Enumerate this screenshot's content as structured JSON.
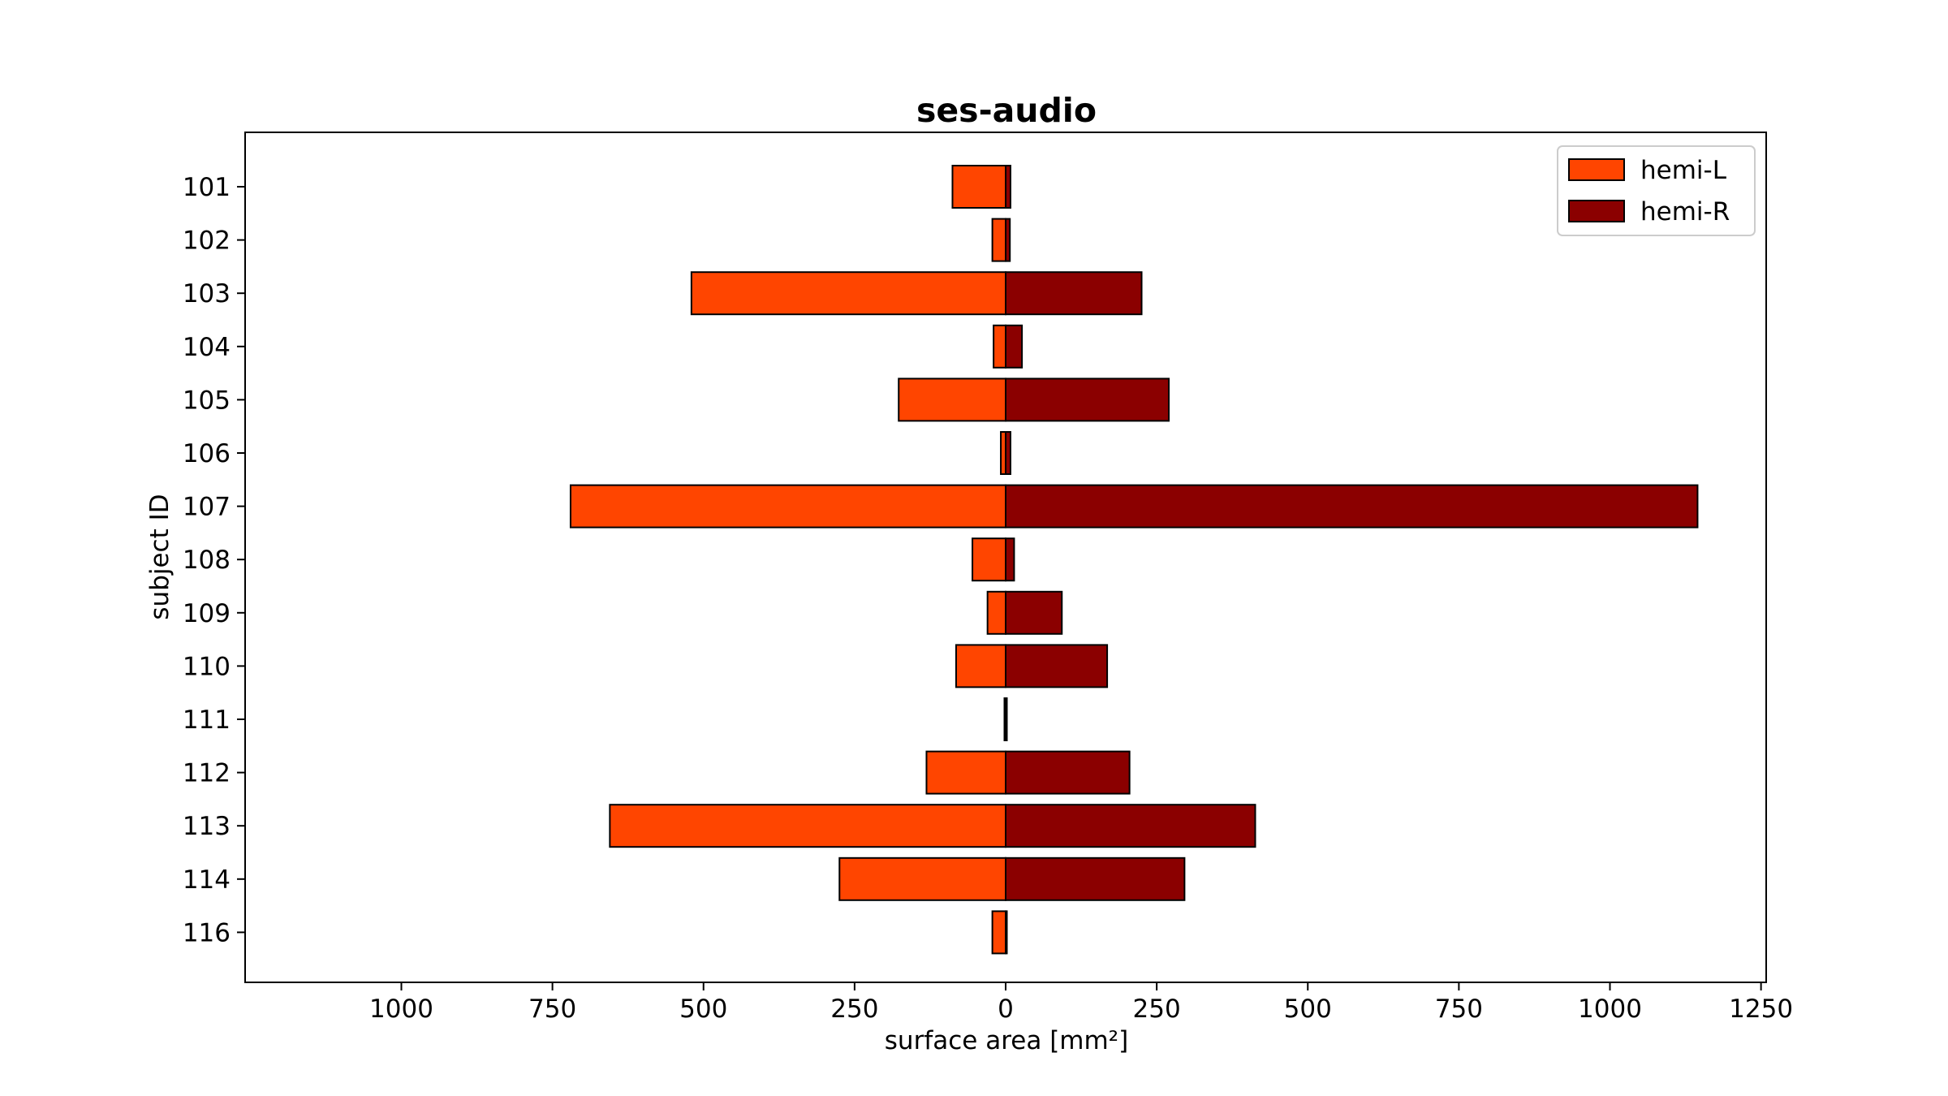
{
  "chart_data": {
    "type": "bar",
    "orientation": "horizontal",
    "title": "ses-audio",
    "xlabel": "surface area [mm²]",
    "ylabel": "subject ID",
    "categories": [
      "101",
      "102",
      "103",
      "104",
      "105",
      "106",
      "107",
      "108",
      "109",
      "110",
      "111",
      "112",
      "113",
      "114",
      "116"
    ],
    "series": [
      {
        "name": "hemi-L",
        "color": "#ff4500",
        "direction": "left",
        "values": [
          88,
          22,
          520,
          20,
          177,
          8,
          720,
          55,
          30,
          82,
          2,
          131,
          655,
          275,
          22
        ]
      },
      {
        "name": "hemi-R",
        "color": "#8b0000",
        "direction": "right",
        "values": [
          8,
          7,
          225,
          27,
          270,
          8,
          1145,
          14,
          93,
          168,
          0,
          205,
          413,
          296,
          0
        ]
      }
    ],
    "xlim": [
      -1260,
      1260
    ],
    "xticks": [
      -1000,
      -750,
      -500,
      -250,
      0,
      250,
      500,
      750,
      1000,
      1250
    ],
    "xtick_labels": [
      "1000",
      "750",
      "500",
      "250",
      "0",
      "250",
      "500",
      "750",
      "1000",
      "1250"
    ],
    "legend": "top-right",
    "grid": false
  }
}
